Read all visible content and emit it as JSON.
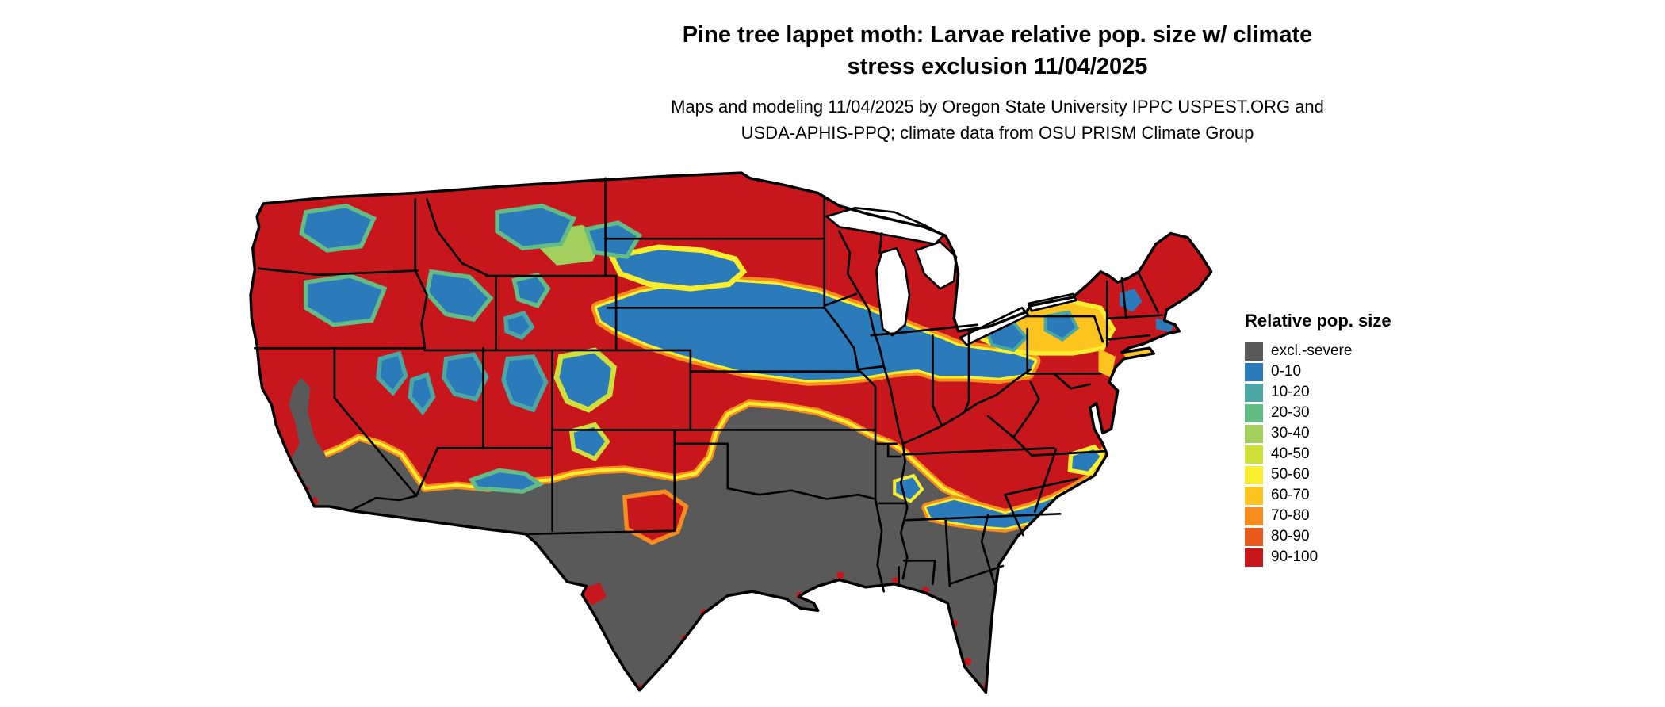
{
  "title": {
    "line1": "Pine tree lappet moth: Larvae relative pop. size w/ climate",
    "line2": "stress exclusion 11/04/2025"
  },
  "subtitle": {
    "line1": "Maps and modeling 11/04/2025 by Oregon State University IPPC USPEST.ORG and",
    "line2": "USDA-APHIS-PPQ; climate data from OSU PRISM Climate Group"
  },
  "legend": {
    "title": "Relative pop. size",
    "items": [
      {
        "label": "excl.-severe",
        "color": "#595959"
      },
      {
        "label": "0-10",
        "color": "#2b7bba"
      },
      {
        "label": "10-20",
        "color": "#4aa7a4"
      },
      {
        "label": "20-30",
        "color": "#63bb85"
      },
      {
        "label": "30-40",
        "color": "#a3cf5f"
      },
      {
        "label": "40-50",
        "color": "#cfdf3a"
      },
      {
        "label": "50-60",
        "color": "#f9ee2d"
      },
      {
        "label": "60-70",
        "color": "#fdc41f"
      },
      {
        "label": "70-80",
        "color": "#f68d1e"
      },
      {
        "label": "80-90",
        "color": "#e85a1c"
      },
      {
        "label": "90-100",
        "color": "#c8171c"
      }
    ]
  }
}
